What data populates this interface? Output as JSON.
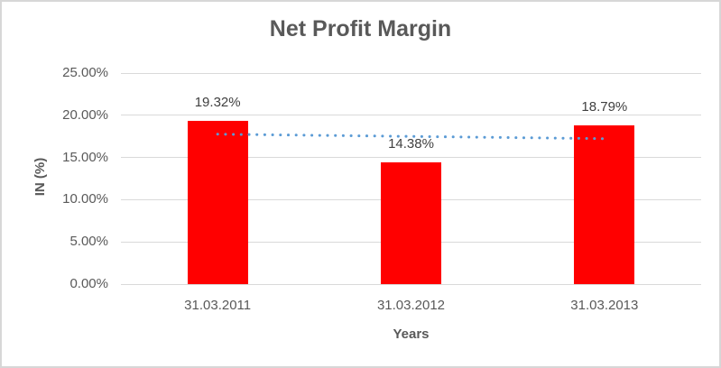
{
  "chart_data": {
    "type": "bar",
    "title": "Net Profit Margin",
    "categories": [
      "31.03.2011",
      "31.03.2012",
      "31.03.2013"
    ],
    "values": [
      19.32,
      14.38,
      18.79
    ],
    "data_labels": [
      "19.32%",
      "14.38%",
      "18.79%"
    ],
    "xlabel": "Years",
    "ylabel": "IN (%)",
    "ylim": [
      0,
      25
    ],
    "yticks": [
      {
        "value": 0,
        "label": "0.00%"
      },
      {
        "value": 5,
        "label": "5.00%"
      },
      {
        "value": 10,
        "label": "10.00%"
      },
      {
        "value": 15,
        "label": "15.00%"
      },
      {
        "value": 20,
        "label": "20.00%"
      },
      {
        "value": 25,
        "label": "25.00%"
      }
    ],
    "grid": true,
    "legend": "none",
    "trendline": {
      "type": "linear",
      "style": "dotted",
      "start_value": 17.76,
      "end_value": 17.23
    },
    "colors": {
      "bar": "#FF0000",
      "trendline": "#5B9BD5",
      "gridline": "#D9D9D9",
      "title_text": "#595959",
      "tick_text": "#595959",
      "data_label_text": "#404040",
      "border": "#D7D7D7"
    }
  }
}
